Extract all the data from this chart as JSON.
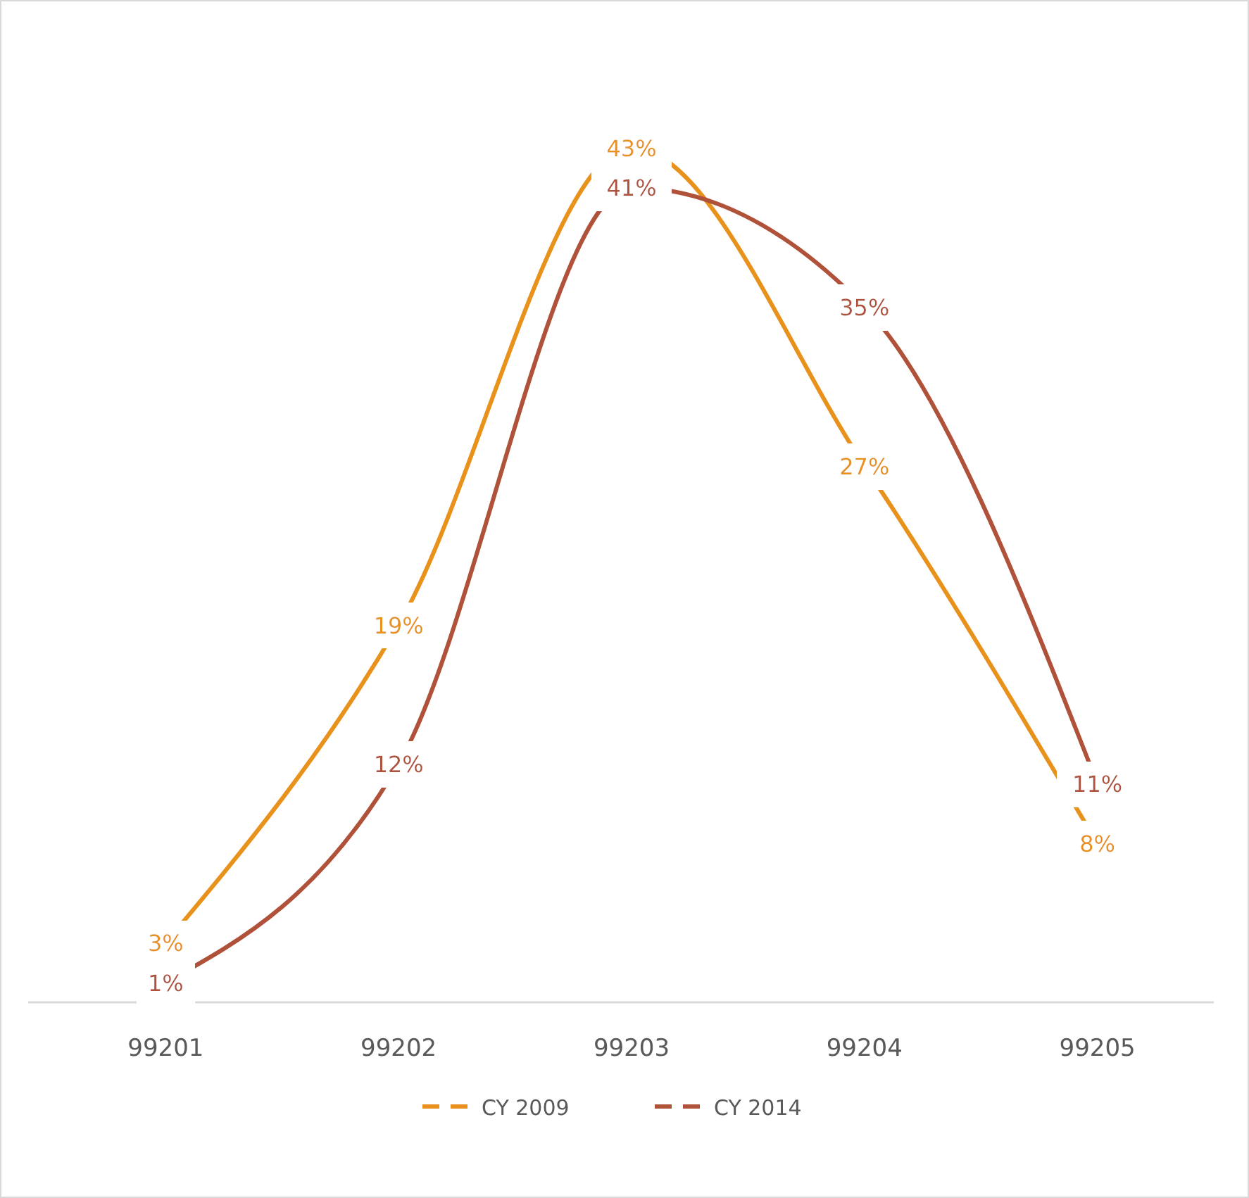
{
  "chart_data": {
    "type": "line",
    "categories": [
      "99201",
      "99202",
      "99203",
      "99204",
      "99205"
    ],
    "series": [
      {
        "name": "CY 2009",
        "color": "#e8921c",
        "values": [
          3,
          19,
          43,
          27,
          8
        ],
        "value_labels": [
          "3%",
          "19%",
          "43%",
          "27%",
          "8%"
        ]
      },
      {
        "name": "CY 2014",
        "color": "#b0513a",
        "values": [
          1,
          12,
          41,
          35,
          11
        ],
        "value_labels": [
          "1%",
          "12%",
          "41%",
          "35%",
          "11%"
        ]
      }
    ],
    "legend": "bottom",
    "line_style": "solid"
  }
}
